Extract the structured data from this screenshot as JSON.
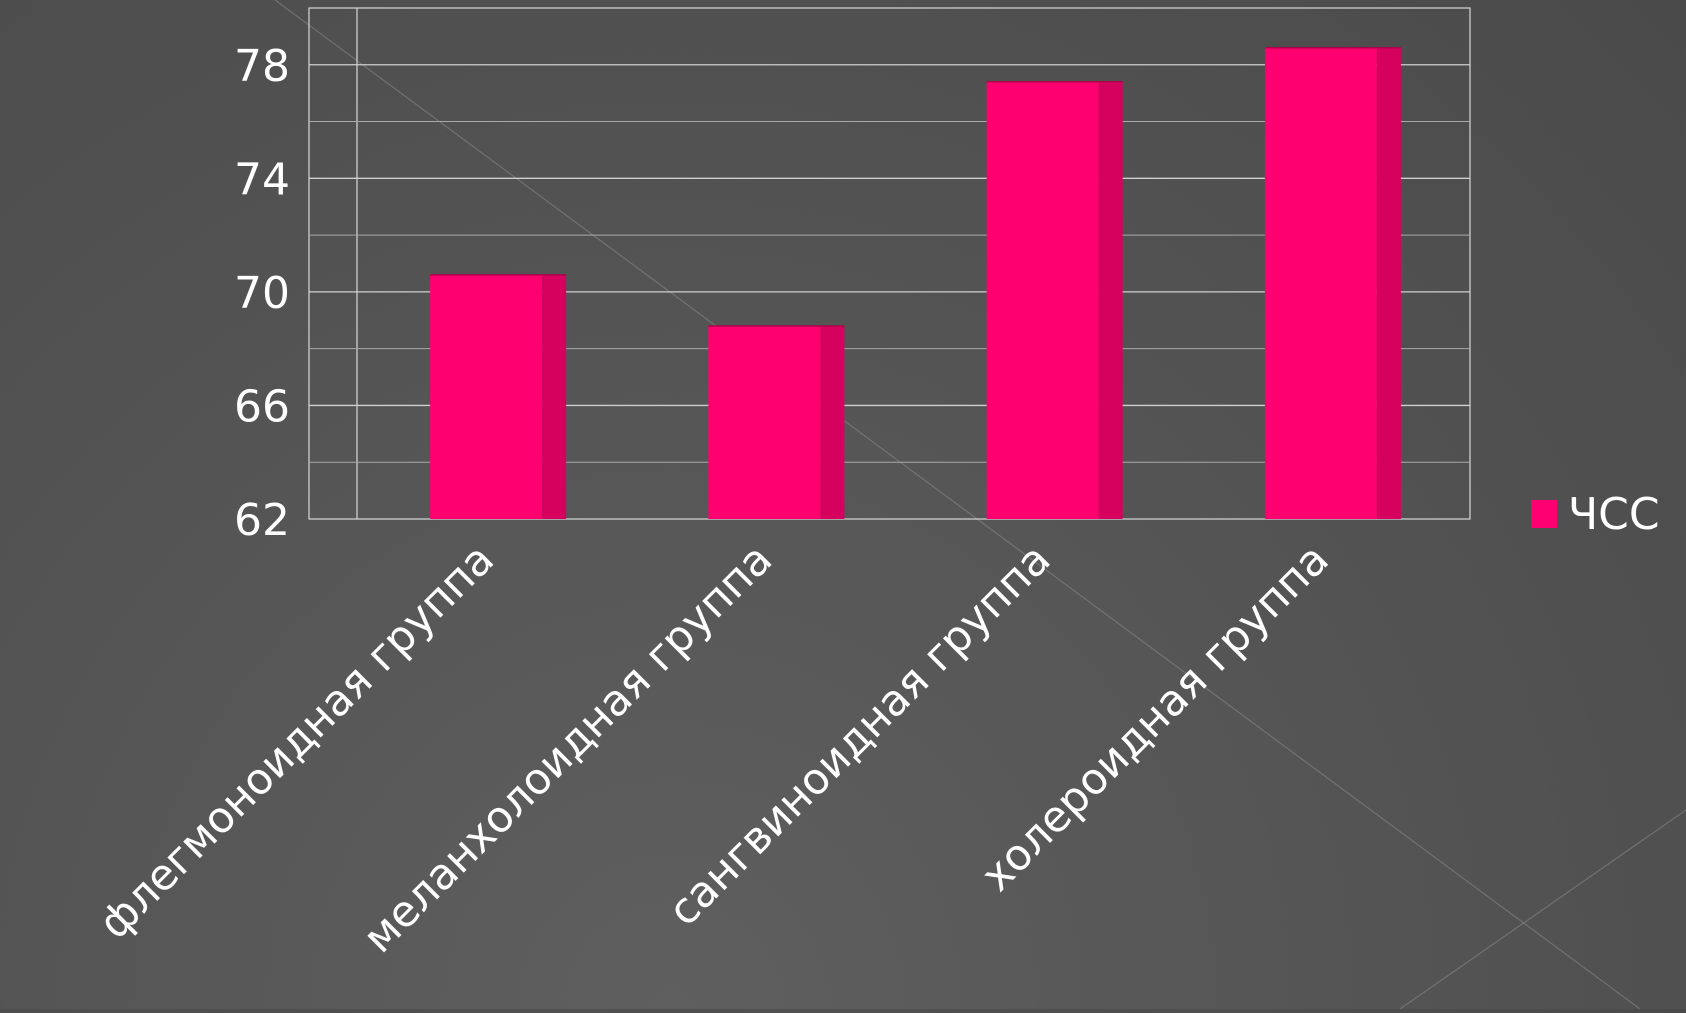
{
  "chart_data": {
    "type": "bar",
    "title": "",
    "xlabel": "",
    "ylabel": "",
    "categories": [
      "флегмоноидная группа",
      "меланхолоидная группа",
      "сангвиноидная группа",
      "холероидная группа"
    ],
    "series": [
      {
        "name": "ЧСС",
        "values": [
          70.6,
          68.8,
          77.4,
          78.6
        ],
        "color": "#ff0070",
        "side_color": "#d6005e"
      }
    ],
    "ylim": [
      62,
      80
    ],
    "yticks": [
      62,
      66,
      70,
      74,
      78
    ],
    "ytick_labels": [
      "62",
      "66",
      "70",
      "74",
      "78"
    ],
    "grid": true,
    "legend_position": "right"
  }
}
